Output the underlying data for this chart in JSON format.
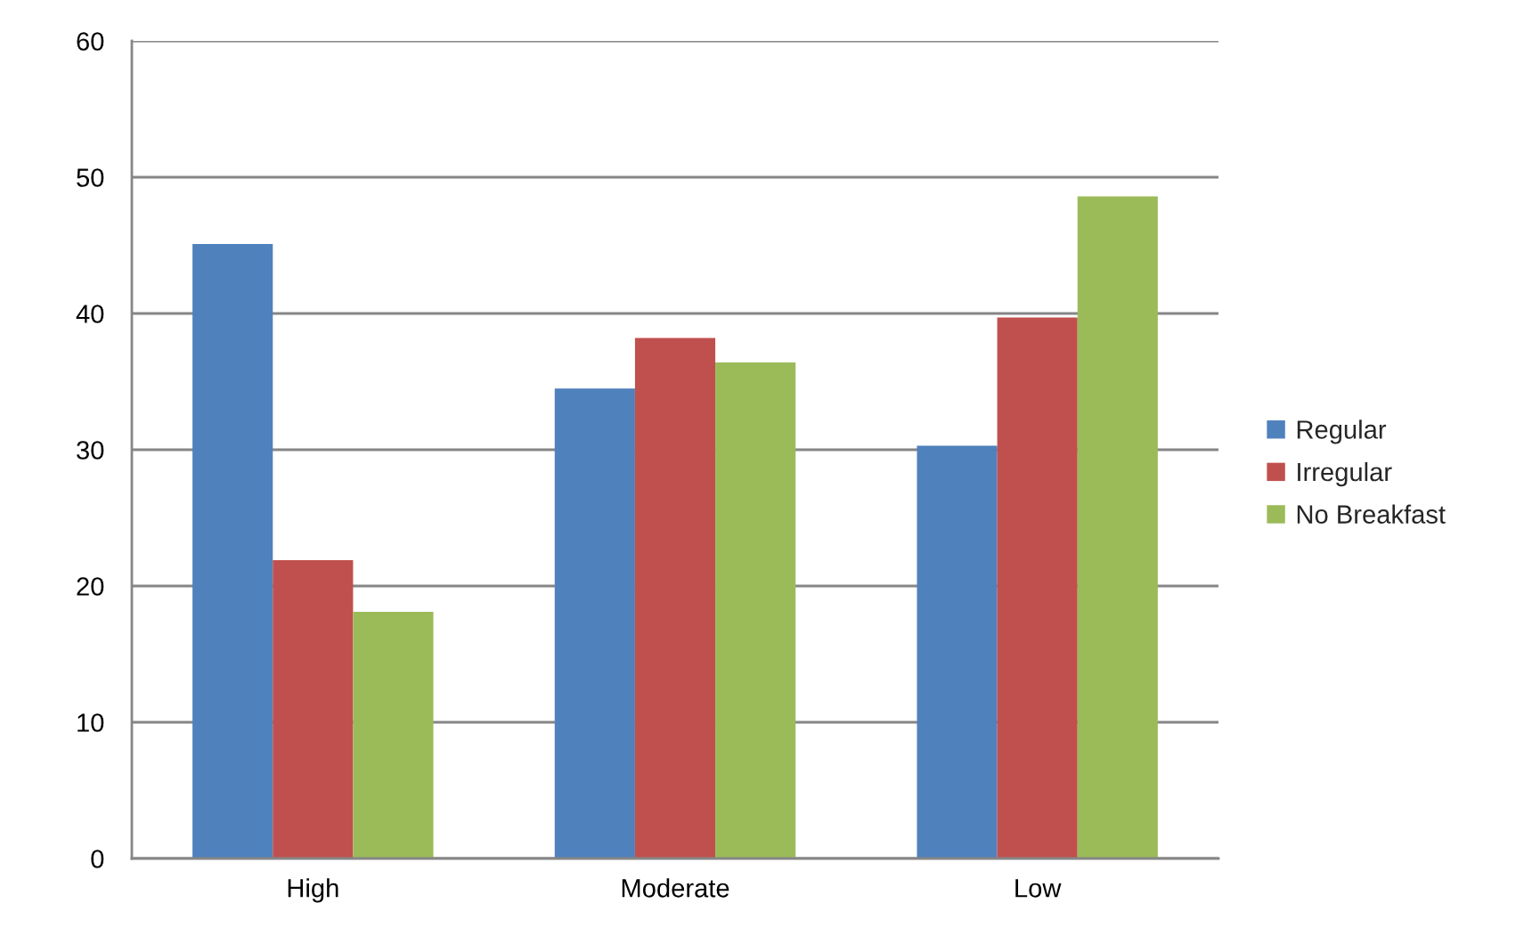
{
  "chart_data": {
    "type": "bar",
    "categories": [
      "High",
      "Moderate",
      "Low"
    ],
    "series": [
      {
        "name": "Regular",
        "color": "#4f81bd",
        "values": [
          45.1,
          34.5,
          30.3
        ]
      },
      {
        "name": "Irregular",
        "color": "#c0504d",
        "values": [
          21.9,
          38.2,
          39.7
        ]
      },
      {
        "name": "No Breakfast",
        "color": "#9bbb59",
        "values": [
          18.1,
          36.4,
          48.6
        ]
      }
    ],
    "ylim": [
      0,
      60
    ],
    "yticks": [
      0,
      10,
      20,
      30,
      40,
      50,
      60
    ],
    "grid": "y",
    "legend": "right"
  }
}
